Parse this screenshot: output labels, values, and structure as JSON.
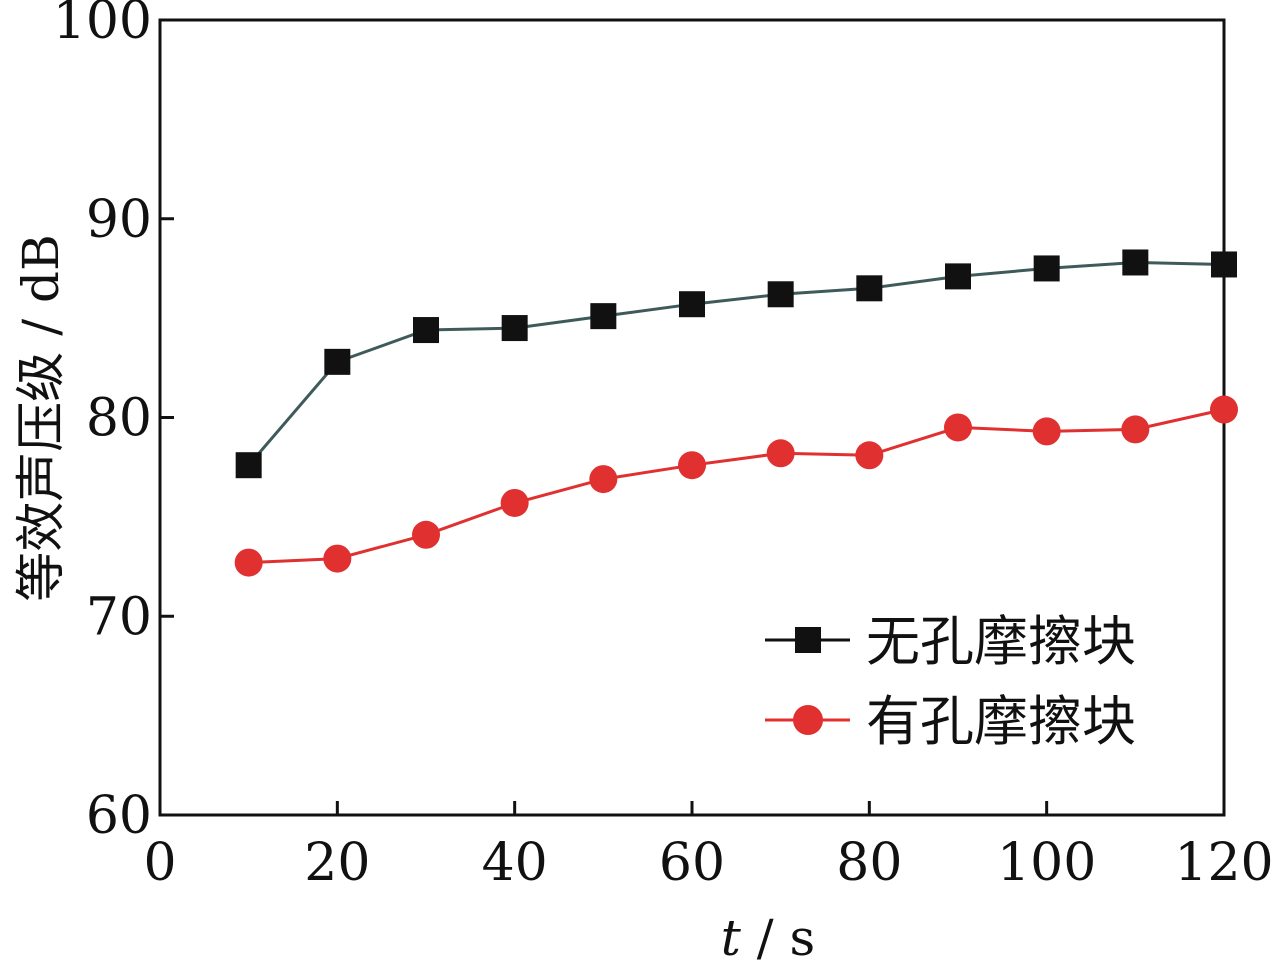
{
  "chart_data": {
    "type": "line",
    "title": "",
    "xlabel_italic": "t",
    "xlabel_rest": " / s",
    "ylabel": "等效声压级 / dB",
    "xlim": [
      0,
      120
    ],
    "ylim": [
      60,
      100
    ],
    "x_ticks": [
      0,
      20,
      40,
      60,
      80,
      100,
      120
    ],
    "y_ticks": [
      60,
      70,
      80,
      90,
      100
    ],
    "x_tick_labels": [
      "0",
      "20",
      "40",
      "60",
      "80",
      "100",
      "120"
    ],
    "y_tick_labels": [
      "60",
      "70",
      "80",
      "90",
      "100"
    ],
    "grid": false,
    "legend_position": "lower-right",
    "series": [
      {
        "name": "无孔摩擦块",
        "marker": "square",
        "color": "#111111",
        "line_color": "#3f5a5a",
        "x": [
          10,
          20,
          30,
          40,
          50,
          60,
          70,
          80,
          90,
          100,
          110,
          120
        ],
        "y": [
          77.6,
          82.8,
          84.4,
          84.5,
          85.1,
          85.7,
          86.2,
          86.5,
          87.1,
          87.5,
          87.8,
          87.7
        ]
      },
      {
        "name": "有孔摩擦块",
        "marker": "circle",
        "color": "#e03030",
        "line_color": "#e03030",
        "x": [
          10,
          20,
          30,
          40,
          50,
          60,
          70,
          80,
          90,
          100,
          110,
          120
        ],
        "y": [
          72.7,
          72.9,
          74.1,
          75.7,
          76.9,
          77.6,
          78.2,
          78.1,
          79.5,
          79.3,
          79.4,
          80.4
        ]
      }
    ]
  }
}
